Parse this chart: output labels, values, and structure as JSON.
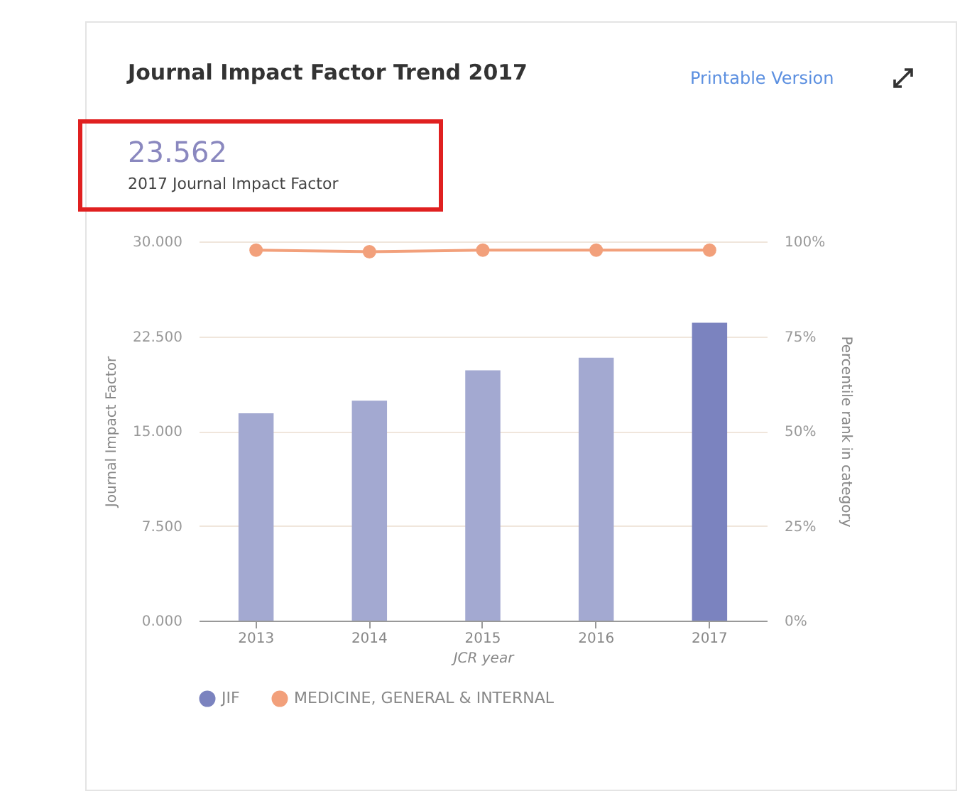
{
  "chart_data": {
    "type": "bar",
    "title": "Journal Impact Factor Trend 2017",
    "annotations": [
      "Printable Version",
      "23.562",
      "2017 Journal Impact Factor"
    ],
    "xlabel": "JCR year",
    "ylabel": "Journal Impact Factor",
    "y2label": "Percentile rank in category",
    "categories": [
      "2013",
      "2014",
      "2015",
      "2016",
      "2017"
    ],
    "series": [
      {
        "name": "JIF",
        "color": "#7b83bf",
        "colors": [
          "#a3a9d1",
          "#a3a9d1",
          "#a3a9d1",
          "#a3a9d1",
          "#7b83bf"
        ],
        "values": [
          16.4,
          17.4,
          19.8,
          20.8,
          23.562
        ]
      },
      {
        "name": "MEDICINE, GENERAL & INTERNAL",
        "type": "line",
        "axis": "y2",
        "color": "#f2a07b",
        "values": [
          97.7,
          97.3,
          97.7,
          97.7,
          97.7
        ]
      }
    ],
    "ylim": [
      0,
      30
    ],
    "yticks": [
      {
        "value": 0,
        "label": "0.000"
      },
      {
        "value": 7.5,
        "label": "7.500"
      },
      {
        "value": 15,
        "label": "15.000"
      },
      {
        "value": 22.5,
        "label": "22.500"
      },
      {
        "value": 30,
        "label": "30.000"
      }
    ],
    "y2lim": [
      0,
      100
    ],
    "y2ticks": [
      {
        "value": 0,
        "label": "0%"
      },
      {
        "value": 25,
        "label": "25%"
      },
      {
        "value": 50,
        "label": "50%"
      },
      {
        "value": 75,
        "label": "75%"
      },
      {
        "value": 100,
        "label": "100%"
      }
    ],
    "grid": "y",
    "legend": "bottom",
    "marker": "circle"
  }
}
